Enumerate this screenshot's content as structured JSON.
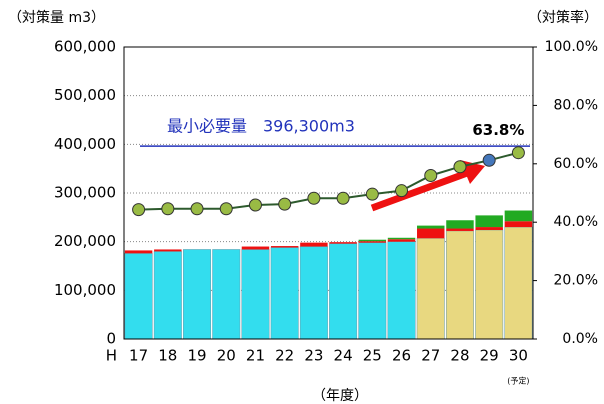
{
  "chart_data": {
    "type": "bar-line",
    "y_label": "（対策量 m3）",
    "y2_label": "（対策率）",
    "x_label": "（年度）",
    "x_prefix": "H",
    "x_note": "(予定)",
    "categories": [
      "17",
      "18",
      "19",
      "20",
      "21",
      "22",
      "23",
      "24",
      "25",
      "26",
      "27",
      "28",
      "29",
      "30"
    ],
    "series": [
      {
        "colors": [
          "#33ddee",
          "#33ddee",
          "#33ddee",
          "#33ddee",
          "#33ddee",
          "#33ddee",
          "#33ddee",
          "#33ddee",
          "#33ddee",
          "#33ddee",
          "#e8d880",
          "#e8d880",
          "#e8d880",
          "#e8d880"
        ],
        "values": [
          176000,
          180000,
          184000,
          184000,
          184000,
          188000,
          190000,
          196000,
          198000,
          200000,
          207000,
          222000,
          224000,
          230000
        ]
      },
      {
        "color": "#ee1111",
        "values": [
          6000,
          4000,
          0,
          0,
          6000,
          3000,
          8000,
          3000,
          3000,
          5000,
          20000,
          5000,
          6000,
          12000
        ]
      },
      {
        "color": "#22aa22",
        "values": [
          0,
          0,
          0,
          0,
          0,
          0,
          0,
          0,
          3000,
          3000,
          6000,
          17000,
          24000,
          22000
        ]
      },
      {
        "type": "line",
        "axis": "y2",
        "color": "#2d5a2d",
        "marker_colors": [
          "#99bb44",
          "#99bb44",
          "#99bb44",
          "#99bb44",
          "#99bb44",
          "#99bb44",
          "#99bb44",
          "#99bb44",
          "#99bb44",
          "#99bb44",
          "#99bb44",
          "#99bb44",
          "#4477bb",
          "#99bb44"
        ],
        "values": [
          44.3,
          44.6,
          44.6,
          44.6,
          45.9,
          46.2,
          48.2,
          48.2,
          49.6,
          50.8,
          56.0,
          59.0,
          61.2,
          63.8
        ],
        "value_labels": [
          null,
          null,
          null,
          null,
          null,
          null,
          null,
          null,
          null,
          null,
          null,
          null,
          null,
          "63.8%"
        ]
      }
    ],
    "reference_line": {
      "label": "最小必要量　396,300m3",
      "value": 396300,
      "color": "#2233bb"
    },
    "ylim": [
      0,
      600000
    ],
    "yticks": [
      0,
      {
        "value": 100000,
        "label": "100,000"
      },
      {
        "value": 200000,
        "label": "200,000"
      },
      {
        "value": 300000,
        "label": "300,000"
      },
      {
        "value": 400000,
        "label": "400,000"
      },
      {
        "value": 500000,
        "label": "500,000"
      },
      {
        "value": 600000,
        "label": "600,000"
      }
    ],
    "y2lim": [
      0,
      100
    ],
    "y2ticks": [
      {
        "value": 0,
        "label": "0.0%"
      },
      {
        "value": 20,
        "label": "20.0%"
      },
      {
        "value": 40,
        "label": "40.0%"
      },
      {
        "value": 60,
        "label": "60.0%"
      },
      {
        "value": 80,
        "label": "80.0%"
      },
      {
        "value": 100,
        "label": "100.0%"
      }
    ],
    "grid": true
  }
}
